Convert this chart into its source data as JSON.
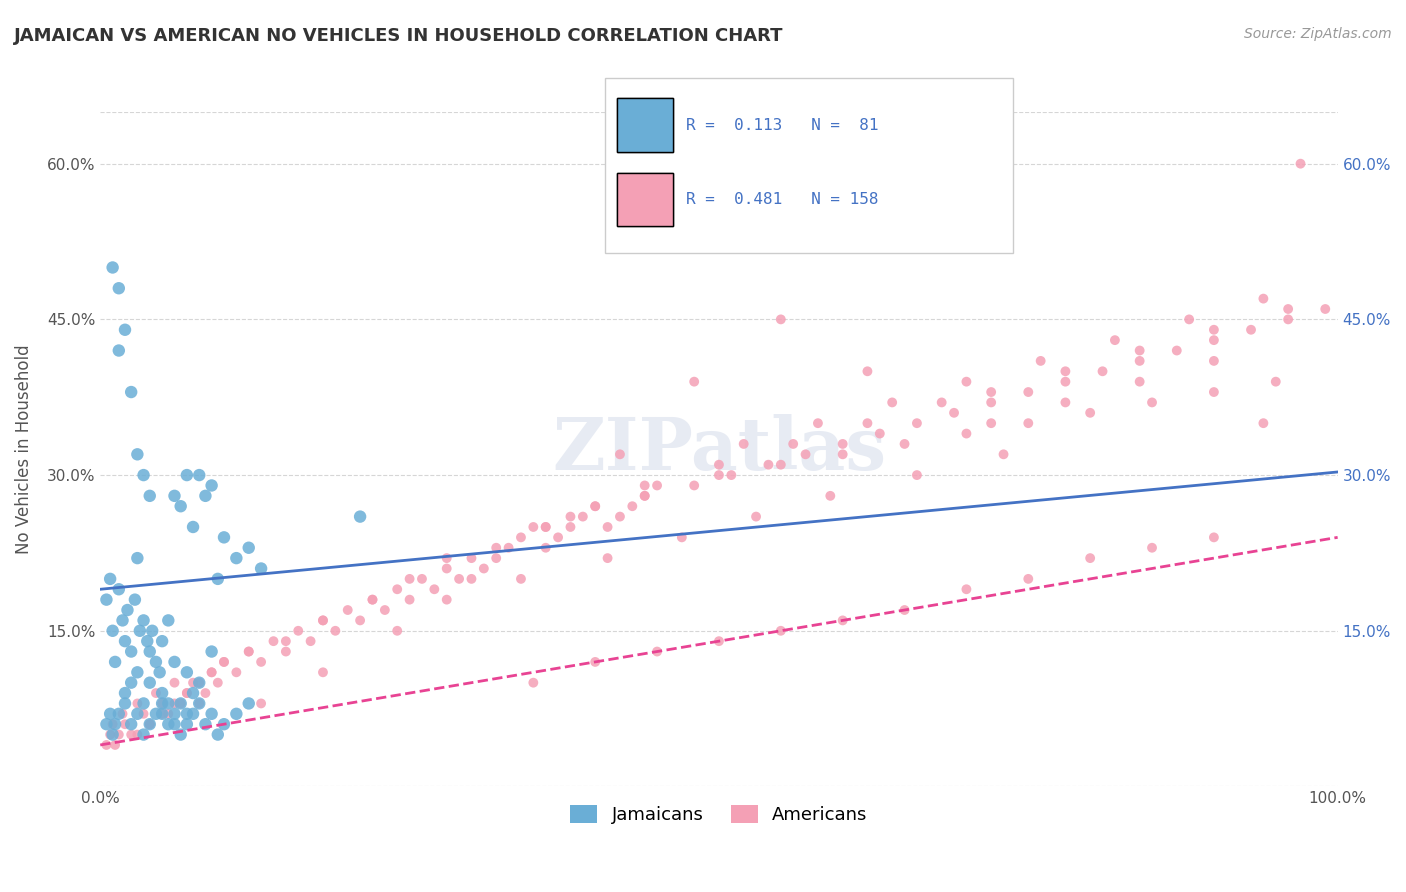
{
  "title": "JAMAICAN VS AMERICAN NO VEHICLES IN HOUSEHOLD CORRELATION CHART",
  "source": "Source: ZipAtlas.com",
  "xlabel": "",
  "ylabel": "No Vehicles in Household",
  "xlim": [
    0.0,
    1.0
  ],
  "ylim": [
    0.0,
    0.65
  ],
  "xticks": [
    0.0,
    0.2,
    0.4,
    0.6,
    0.8,
    1.0
  ],
  "xtick_labels": [
    "0.0%",
    "",
    "",
    "",
    "",
    "100.0%"
  ],
  "yticks": [
    0.0,
    0.15,
    0.3,
    0.45,
    0.6
  ],
  "ytick_labels": [
    "",
    "15.0%",
    "30.0%",
    "45.0%",
    "60.0%"
  ],
  "legend_r1": "R =  0.113",
  "legend_n1": "N =  81",
  "legend_r2": "R =  0.481",
  "legend_n2": "N = 158",
  "legend_label1": "Jamaicans",
  "legend_label2": "Americans",
  "color_jamaican": "#6aaed6",
  "color_american": "#f4a0b5",
  "trendline_color_jamaican": "#4472c4",
  "trendline_color_american": "#e84393",
  "watermark": "ZIPatlas",
  "background_color": "#ffffff",
  "grid_color": "#cccccc",
  "title_color": "#333333",
  "jamaican_x": [
    0.005,
    0.008,
    0.01,
    0.012,
    0.015,
    0.018,
    0.02,
    0.022,
    0.025,
    0.028,
    0.03,
    0.032,
    0.035,
    0.038,
    0.04,
    0.042,
    0.045,
    0.048,
    0.05,
    0.055,
    0.06,
    0.065,
    0.07,
    0.075,
    0.08,
    0.085,
    0.09,
    0.095,
    0.1,
    0.11,
    0.12,
    0.13,
    0.015,
    0.02,
    0.025,
    0.03,
    0.035,
    0.04,
    0.01,
    0.015,
    0.02,
    0.025,
    0.03,
    0.035,
    0.04,
    0.05,
    0.06,
    0.07,
    0.08,
    0.09,
    0.05,
    0.055,
    0.06,
    0.065,
    0.07,
    0.075,
    0.005,
    0.008,
    0.01,
    0.012,
    0.015,
    0.02,
    0.025,
    0.03,
    0.035,
    0.04,
    0.045,
    0.05,
    0.055,
    0.06,
    0.065,
    0.07,
    0.075,
    0.08,
    0.085,
    0.09,
    0.095,
    0.1,
    0.11,
    0.12,
    0.21
  ],
  "jamaican_y": [
    0.18,
    0.2,
    0.15,
    0.12,
    0.19,
    0.16,
    0.14,
    0.17,
    0.13,
    0.18,
    0.22,
    0.15,
    0.16,
    0.14,
    0.13,
    0.15,
    0.12,
    0.11,
    0.14,
    0.16,
    0.28,
    0.27,
    0.3,
    0.25,
    0.3,
    0.28,
    0.29,
    0.2,
    0.24,
    0.22,
    0.23,
    0.21,
    0.42,
    0.44,
    0.38,
    0.32,
    0.3,
    0.28,
    0.5,
    0.48,
    0.09,
    0.1,
    0.11,
    0.08,
    0.1,
    0.09,
    0.12,
    0.11,
    0.1,
    0.13,
    0.07,
    0.08,
    0.06,
    0.08,
    0.07,
    0.09,
    0.06,
    0.07,
    0.05,
    0.06,
    0.07,
    0.08,
    0.06,
    0.07,
    0.05,
    0.06,
    0.07,
    0.08,
    0.06,
    0.07,
    0.05,
    0.06,
    0.07,
    0.08,
    0.06,
    0.07,
    0.05,
    0.06,
    0.07,
    0.08,
    0.26
  ],
  "american_x": [
    0.005,
    0.008,
    0.01,
    0.012,
    0.015,
    0.018,
    0.02,
    0.025,
    0.03,
    0.035,
    0.04,
    0.045,
    0.05,
    0.055,
    0.06,
    0.065,
    0.07,
    0.075,
    0.08,
    0.085,
    0.09,
    0.095,
    0.1,
    0.11,
    0.12,
    0.13,
    0.14,
    0.15,
    0.16,
    0.17,
    0.18,
    0.19,
    0.2,
    0.21,
    0.22,
    0.23,
    0.24,
    0.25,
    0.26,
    0.27,
    0.28,
    0.29,
    0.3,
    0.31,
    0.32,
    0.33,
    0.34,
    0.35,
    0.36,
    0.37,
    0.38,
    0.39,
    0.4,
    0.41,
    0.42,
    0.43,
    0.44,
    0.45,
    0.5,
    0.55,
    0.6,
    0.65,
    0.7,
    0.75,
    0.8,
    0.85,
    0.9,
    0.95,
    0.03,
    0.04,
    0.05,
    0.06,
    0.07,
    0.08,
    0.09,
    0.1,
    0.12,
    0.15,
    0.18,
    0.22,
    0.25,
    0.28,
    0.32,
    0.36,
    0.4,
    0.44,
    0.5,
    0.56,
    0.62,
    0.68,
    0.52,
    0.58,
    0.64,
    0.7,
    0.76,
    0.82,
    0.88,
    0.94,
    0.48,
    0.54,
    0.6,
    0.66,
    0.72,
    0.78,
    0.84,
    0.9,
    0.96,
    0.72,
    0.78,
    0.84,
    0.9,
    0.96,
    0.72,
    0.78,
    0.84,
    0.9,
    0.35,
    0.4,
    0.45,
    0.5,
    0.55,
    0.6,
    0.65,
    0.7,
    0.75,
    0.8,
    0.85,
    0.9,
    0.94,
    0.97,
    0.62,
    0.55,
    0.48,
    0.42,
    0.36,
    0.3,
    0.24,
    0.18,
    0.13,
    0.38,
    0.44,
    0.51,
    0.57,
    0.63,
    0.69,
    0.75,
    0.81,
    0.87,
    0.93,
    0.99,
    0.28,
    0.34,
    0.41,
    0.47,
    0.53,
    0.59,
    0.66,
    0.73
  ],
  "american_y": [
    0.04,
    0.05,
    0.06,
    0.04,
    0.05,
    0.07,
    0.06,
    0.05,
    0.08,
    0.07,
    0.06,
    0.09,
    0.08,
    0.07,
    0.1,
    0.08,
    0.09,
    0.1,
    0.08,
    0.09,
    0.11,
    0.1,
    0.12,
    0.11,
    0.13,
    0.12,
    0.14,
    0.13,
    0.15,
    0.14,
    0.16,
    0.15,
    0.17,
    0.16,
    0.18,
    0.17,
    0.19,
    0.18,
    0.2,
    0.19,
    0.21,
    0.2,
    0.22,
    0.21,
    0.22,
    0.23,
    0.24,
    0.25,
    0.23,
    0.24,
    0.25,
    0.26,
    0.27,
    0.25,
    0.26,
    0.27,
    0.28,
    0.29,
    0.3,
    0.31,
    0.32,
    0.33,
    0.34,
    0.35,
    0.36,
    0.37,
    0.38,
    0.39,
    0.05,
    0.06,
    0.07,
    0.08,
    0.09,
    0.1,
    0.11,
    0.12,
    0.13,
    0.14,
    0.16,
    0.18,
    0.2,
    0.22,
    0.23,
    0.25,
    0.27,
    0.29,
    0.31,
    0.33,
    0.35,
    0.37,
    0.33,
    0.35,
    0.37,
    0.39,
    0.41,
    0.43,
    0.45,
    0.47,
    0.29,
    0.31,
    0.33,
    0.35,
    0.37,
    0.39,
    0.41,
    0.43,
    0.45,
    0.38,
    0.4,
    0.42,
    0.44,
    0.46,
    0.35,
    0.37,
    0.39,
    0.41,
    0.1,
    0.12,
    0.13,
    0.14,
    0.15,
    0.16,
    0.17,
    0.19,
    0.2,
    0.22,
    0.23,
    0.24,
    0.35,
    0.6,
    0.4,
    0.45,
    0.39,
    0.32,
    0.25,
    0.2,
    0.15,
    0.11,
    0.08,
    0.26,
    0.28,
    0.3,
    0.32,
    0.34,
    0.36,
    0.38,
    0.4,
    0.42,
    0.44,
    0.46,
    0.18,
    0.2,
    0.22,
    0.24,
    0.26,
    0.28,
    0.3,
    0.32
  ],
  "dot_size_jamaican": 80,
  "dot_size_american": 50,
  "trendline_slope_jamaican": 0.113,
  "trendline_intercept_jamaican": 0.19,
  "trendline_slope_american": 0.2,
  "trendline_intercept_american": 0.04
}
